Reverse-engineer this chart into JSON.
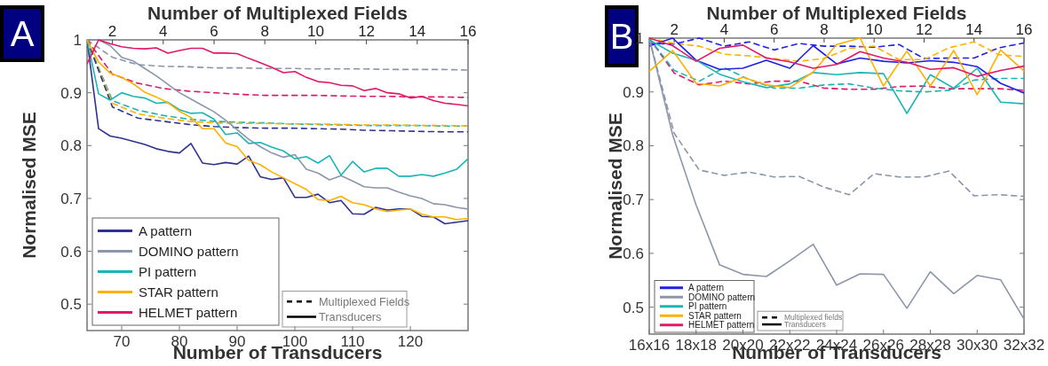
{
  "chart_data": [
    {
      "type": "line",
      "xlabel": "Number of Transducers",
      "x2label": "Number of Multiplexed Fields",
      "ylabel": "Normalised MSE",
      "annotations": [
        "A",
        "Multiplexed Fields",
        "Transducers"
      ],
      "x": [
        64,
        66,
        68,
        70,
        72,
        74,
        76,
        78,
        80,
        82,
        84,
        86,
        88,
        90,
        92,
        94,
        96,
        98,
        100,
        102,
        104,
        106,
        108,
        110,
        112,
        114,
        116,
        118,
        120,
        122,
        124,
        126,
        128,
        130
      ],
      "xlim": [
        64,
        130
      ],
      "xticks": [
        70,
        80,
        90,
        100,
        110,
        120
      ],
      "x2lim": [
        1,
        16
      ],
      "x2ticks": [
        2,
        4,
        6,
        8,
        10,
        12,
        14,
        16
      ],
      "ylim": [
        0.45,
        1
      ],
      "yticks": [
        0.5,
        0.6,
        0.7,
        0.8,
        0.9,
        1
      ],
      "legend": "bottom left",
      "series": [
        {
          "color": "#8c96aa",
          "line_style": "dashed",
          "axis": "x2",
          "x": [
            1,
            2,
            3,
            4,
            5,
            6,
            7,
            8,
            9,
            10,
            11,
            12,
            13,
            14,
            15,
            16
          ],
          "values": [
            1,
            0.967,
            0.953,
            0.95,
            0.949,
            0.947,
            0.947,
            0.946,
            0.946,
            0.945,
            0.945,
            0.945,
            0.944,
            0.944,
            0.944,
            0.943
          ]
        },
        {
          "color": "#e0186a",
          "line_style": "dashed",
          "axis": "x2",
          "x": [
            1,
            2,
            3,
            4,
            5,
            6,
            7,
            8,
            9,
            10,
            11,
            12,
            13,
            14,
            15,
            16
          ],
          "values": [
            1,
            0.935,
            0.918,
            0.908,
            0.903,
            0.9,
            0.897,
            0.895,
            0.895,
            0.895,
            0.894,
            0.893,
            0.893,
            0.892,
            0.892,
            0.891
          ]
        },
        {
          "color": "#1cb5b5",
          "line_style": "dashed",
          "axis": "x2",
          "x": [
            1,
            2,
            3,
            4,
            5,
            6,
            7,
            8,
            9,
            10,
            11,
            12,
            13,
            14,
            15,
            16
          ],
          "values": [
            1,
            0.885,
            0.867,
            0.857,
            0.85,
            0.846,
            0.844,
            0.843,
            0.841,
            0.84,
            0.839,
            0.838,
            0.838,
            0.838,
            0.837,
            0.837
          ]
        },
        {
          "color": "#ffb000",
          "line_style": "dashed",
          "axis": "x2",
          "x": [
            1,
            2,
            3,
            4,
            5,
            6,
            7,
            8,
            9,
            10,
            11,
            12,
            13,
            14,
            15,
            16
          ],
          "values": [
            1,
            0.88,
            0.86,
            0.852,
            0.846,
            0.843,
            0.842,
            0.842,
            0.841,
            0.841,
            0.84,
            0.839,
            0.839,
            0.838,
            0.838,
            0.837
          ]
        },
        {
          "color": "#2e3192",
          "line_style": "dashed",
          "axis": "x2",
          "x": [
            1,
            2,
            3,
            4,
            5,
            6,
            7,
            8,
            9,
            10,
            11,
            12,
            13,
            14,
            15,
            16
          ],
          "values": [
            1,
            0.873,
            0.852,
            0.846,
            0.84,
            0.836,
            0.834,
            0.833,
            0.833,
            0.832,
            0.831,
            0.829,
            0.828,
            0.827,
            0.826,
            0.826
          ]
        },
        {
          "name": "A pattern",
          "color": "#2e3192",
          "line_style": "solid",
          "values": [
            1.0,
            0.832,
            0.818,
            0.814,
            0.808,
            0.802,
            0.794,
            0.789,
            0.786,
            0.804,
            0.767,
            0.764,
            0.768,
            0.765,
            0.78,
            0.741,
            0.736,
            0.739,
            0.702,
            0.702,
            0.708,
            0.692,
            0.696,
            0.671,
            0.67,
            0.683,
            0.678,
            0.68,
            0.68,
            0.666,
            0.665,
            0.652,
            0.655,
            0.658
          ]
        },
        {
          "name": "DOMINO pattern",
          "color": "#8c96aa",
          "line_style": "solid",
          "values": [
            1,
            1,
            0.989,
            0.967,
            0.96,
            0.946,
            0.932,
            0.916,
            0.9,
            0.888,
            0.876,
            0.864,
            0.848,
            0.83,
            0.812,
            0.798,
            0.786,
            0.778,
            0.783,
            0.755,
            0.748,
            0.735,
            0.743,
            0.733,
            0.722,
            0.72,
            0.72,
            0.712,
            0.705,
            0.7,
            0.69,
            0.688,
            0.683,
            0.68
          ]
        },
        {
          "name": "PI pattern",
          "color": "#1cb5b5",
          "line_style": "solid",
          "values": [
            1,
            0.898,
            0.886,
            0.9,
            0.893,
            0.89,
            0.88,
            0.882,
            0.868,
            0.861,
            0.862,
            0.85,
            0.821,
            0.824,
            0.804,
            0.806,
            0.797,
            0.79,
            0.775,
            0.779,
            0.767,
            0.781,
            0.744,
            0.77,
            0.75,
            0.757,
            0.757,
            0.742,
            0.742,
            0.745,
            0.742,
            0.748,
            0.755,
            0.775
          ]
        },
        {
          "name": "STAR pattern",
          "color": "#ffb000",
          "line_style": "solid",
          "values": [
            1,
            0.958,
            0.937,
            0.929,
            0.917,
            0.901,
            0.892,
            0.881,
            0.865,
            0.853,
            0.832,
            0.832,
            0.805,
            0.798,
            0.772,
            0.764,
            0.75,
            0.739,
            0.728,
            0.717,
            0.698,
            0.696,
            0.704,
            0.692,
            0.688,
            0.68,
            0.675,
            0.678,
            0.68,
            0.67,
            0.665,
            0.665,
            0.66,
            0.662
          ]
        },
        {
          "name": "HELMET pattern",
          "color": "#e0186a",
          "line_style": "solid",
          "values": [
            0.955,
            1,
            0.993,
            0.987,
            0.984,
            0.983,
            0.985,
            0.975,
            0.98,
            0.984,
            0.984,
            0.975,
            0.975,
            0.974,
            0.965,
            0.957,
            0.948,
            0.938,
            0.94,
            0.929,
            0.921,
            0.919,
            0.914,
            0.913,
            0.904,
            0.908,
            0.9,
            0.898,
            0.89,
            0.893,
            0.885,
            0.88,
            0.878,
            0.875
          ]
        }
      ]
    },
    {
      "type": "line",
      "xlabel": "Number of Transducers",
      "x2label": "Number of Multiplexed Fields",
      "ylabel": "Normalised MSE",
      "annotations": [
        "B",
        "Multiplexed fields",
        "Transducers"
      ],
      "categories": [
        "16x16",
        null,
        "18x18",
        null,
        "20x20",
        null,
        "22x22",
        null,
        "24x24",
        null,
        "26x26",
        null,
        "28x28",
        null,
        "30x30",
        null,
        "32x32"
      ],
      "x2lim": [
        1,
        16
      ],
      "x2ticks": [
        2,
        4,
        6,
        8,
        10,
        12,
        14,
        16
      ],
      "ylim": [
        0.45,
        1
      ],
      "yticks": [
        0.5,
        0.6,
        0.7,
        0.8,
        0.9,
        1
      ],
      "legend": "bottom left",
      "series": [
        {
          "color": "#1f1fe6",
          "line_style": "dashed",
          "axis": "x2",
          "x": [
            1,
            2,
            3,
            4,
            5,
            6,
            7,
            8,
            9,
            10,
            11,
            12,
            13,
            14,
            15,
            16
          ],
          "values": [
            0.99,
            0.989,
            1.0,
            0.985,
            0.993,
            0.978,
            0.99,
            0.985,
            0.985,
            0.983,
            0.988,
            0.962,
            0.963,
            0.963,
            0.982,
            0.991
          ]
        },
        {
          "color": "#ffb000",
          "line_style": "dashed",
          "axis": "x2",
          "x": [
            1,
            2,
            3,
            4,
            5,
            6,
            7,
            8,
            9,
            10,
            11,
            12,
            13,
            14,
            15,
            16
          ],
          "values": [
            1.0,
            0.99,
            0.985,
            0.97,
            0.967,
            0.962,
            0.957,
            0.962,
            0.981,
            0.985,
            0.96,
            0.96,
            0.982,
            0.993,
            0.969,
            0.966
          ]
        },
        {
          "color": "#e0186a",
          "line_style": "dashed",
          "axis": "x2",
          "x": [
            1,
            2,
            3,
            4,
            5,
            6,
            7,
            8,
            9,
            10,
            11,
            12,
            13,
            14,
            15,
            16
          ],
          "values": [
            1.0,
            0.935,
            0.913,
            0.92,
            0.915,
            0.92,
            0.92,
            0.907,
            0.905,
            0.905,
            0.91,
            0.911,
            0.906,
            0.906,
            0.906,
            0.903
          ]
        },
        {
          "color": "#1cb5b5",
          "line_style": "dashed",
          "axis": "x2",
          "x": [
            1,
            2,
            3,
            4,
            5,
            6,
            7,
            8,
            9,
            10,
            11,
            12,
            13,
            14,
            15,
            16
          ],
          "values": [
            1.0,
            0.94,
            0.92,
            0.945,
            0.923,
            0.907,
            0.907,
            0.913,
            0.915,
            0.907,
            0.902,
            0.9,
            0.903,
            0.922,
            0.925,
            0.925
          ]
        },
        {
          "color": "#8c96aa",
          "line_style": "dashed",
          "axis": "x2",
          "x": [
            1,
            2,
            3,
            4,
            5,
            6,
            7,
            8,
            9,
            10,
            11,
            12,
            13,
            14,
            15,
            16
          ],
          "values": [
            1.0,
            0.823,
            0.755,
            0.745,
            0.751,
            0.742,
            0.743,
            0.723,
            0.709,
            0.748,
            0.742,
            0.742,
            0.753,
            0.707,
            0.709,
            0.706
          ]
        },
        {
          "name": "A pattern",
          "color": "#1f1fe6",
          "line_style": "solid",
          "values": [
            0.985,
            1.0,
            0.959,
            0.942,
            0.944,
            0.959,
            0.944,
            0.986,
            0.952,
            0.963,
            0.957,
            0.954,
            0.958,
            0.955,
            0.947,
            0.916,
            0.898
          ]
        },
        {
          "name": "DOMINO pattern",
          "color": "#8c96aa",
          "line_style": "solid",
          "values": [
            1.0,
            0.82,
            0.69,
            0.579,
            0.561,
            0.557,
            0.586,
            0.617,
            0.541,
            0.562,
            0.561,
            0.498,
            0.566,
            0.525,
            0.559,
            0.551,
            0.478
          ]
        },
        {
          "name": "PI pattern",
          "color": "#1cb5b5",
          "line_style": "solid",
          "values": [
            0.997,
            0.972,
            0.959,
            0.933,
            0.919,
            0.908,
            0.915,
            0.936,
            0.932,
            0.936,
            0.934,
            0.86,
            0.932,
            0.907,
            0.944,
            0.881,
            0.878
          ]
        },
        {
          "name": "STAR pattern",
          "color": "#ffb000",
          "line_style": "solid",
          "values": [
            0.938,
            0.977,
            0.916,
            0.911,
            0.927,
            0.913,
            0.908,
            0.937,
            0.988,
            1.0,
            0.911,
            0.976,
            0.911,
            0.977,
            0.895,
            0.978,
            0.939
          ]
        },
        {
          "name": "HELMET pattern",
          "color": "#e0186a",
          "line_style": "solid",
          "values": [
            1.0,
            0.986,
            0.957,
            0.981,
            0.987,
            0.963,
            0.956,
            0.944,
            0.951,
            0.975,
            0.963,
            0.955,
            0.942,
            0.945,
            0.929,
            0.94,
            0.948
          ]
        }
      ]
    }
  ]
}
